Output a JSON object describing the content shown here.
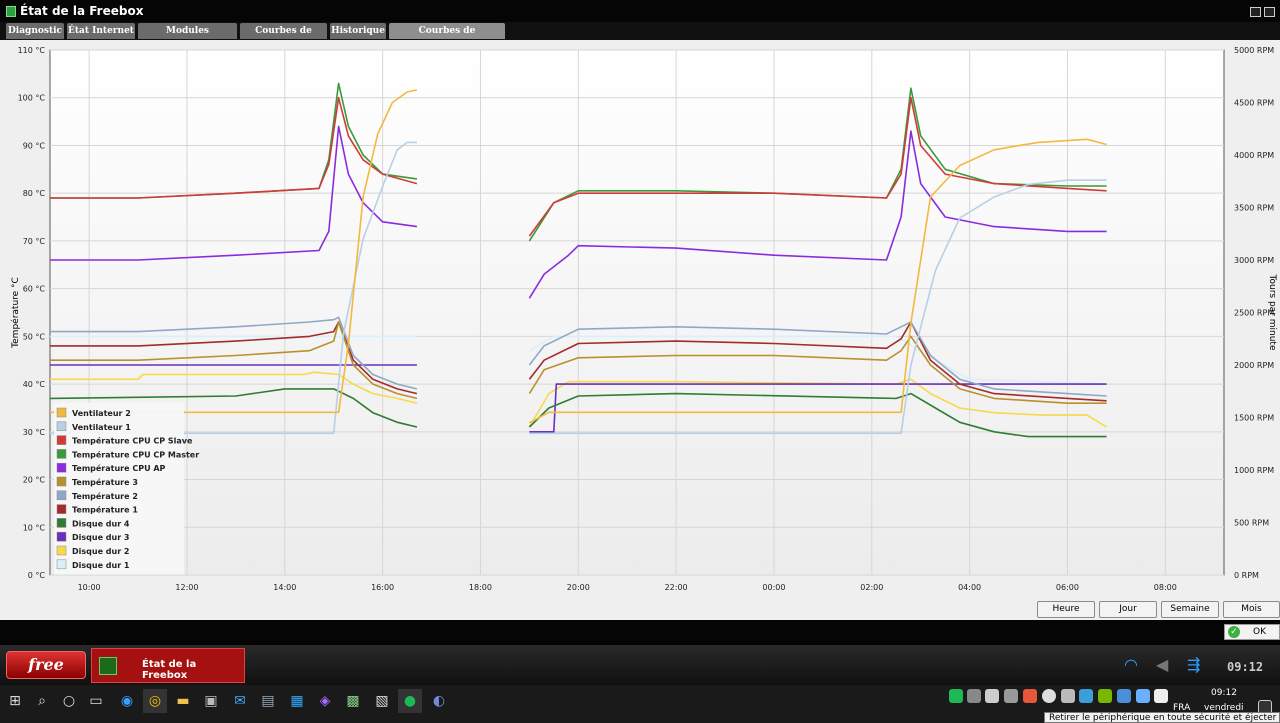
{
  "window": {
    "title": "État de la Freebox"
  },
  "tabs": [
    {
      "label": "Diagnostic"
    },
    {
      "label": "État Internet"
    },
    {
      "label": "Modules d'extension"
    },
    {
      "label": "Courbes de Débit"
    },
    {
      "label": "Historique"
    },
    {
      "label": "Courbes de température",
      "active": true
    }
  ],
  "range_buttons": [
    {
      "label": "Heure"
    },
    {
      "label": "Jour"
    },
    {
      "label": "Semaine"
    },
    {
      "label": "Mois"
    }
  ],
  "ok_button": {
    "label": "OK"
  },
  "freebox_bar": {
    "logo": "free",
    "task_label": "État de la Freebox",
    "clock": "09:12"
  },
  "taskbar": {
    "time": "09:12",
    "lang": "FRA",
    "day": "vendredi",
    "tooltip": "Retirer le périphérique en toute sécurité et éjecter le média"
  },
  "chart_data": {
    "type": "line",
    "ylabel": "Température °C",
    "y2label": "Tours par minute",
    "ylim": [
      0,
      110
    ],
    "y2lim": [
      0,
      5000
    ],
    "y_ticks": [
      "0 °C",
      "10 °C",
      "20 °C",
      "30 °C",
      "40 °C",
      "50 °C",
      "60 °C",
      "70 °C",
      "80 °C",
      "90 °C",
      "100 °C",
      "110 °C"
    ],
    "y2_ticks": [
      "0 RPM",
      "500 RPM",
      "1000 RPM",
      "1500 RPM",
      "2000 RPM",
      "2500 RPM",
      "3000 RPM",
      "3500 RPM",
      "4000 RPM",
      "4500 RPM",
      "5000 RPM"
    ],
    "x_ticks": [
      "10:00",
      "12:00",
      "14:00",
      "16:00",
      "18:00",
      "20:00",
      "22:00",
      "00:00",
      "02:00",
      "04:00",
      "06:00",
      "08:00"
    ],
    "x_tick_hours": [
      10,
      12,
      14,
      16,
      18,
      20,
      22,
      24,
      26,
      28,
      30,
      32
    ],
    "xlim_hours": [
      9.2,
      33.2
    ],
    "grid": true,
    "legend_position": "bottom-left",
    "series": [
      {
        "name": "Ventilateur 2",
        "color": "#f2b840",
        "axis": "y2",
        "segments": [
          [
            [
              9.2,
              1550
            ],
            [
              15.1,
              1550
            ],
            [
              15.3,
              2200
            ],
            [
              15.6,
              3600
            ],
            [
              15.9,
              4200
            ],
            [
              16.2,
              4500
            ],
            [
              16.5,
              4600
            ],
            [
              16.7,
              4620
            ]
          ],
          [
            [
              19.0,
              1450
            ],
            [
              19.4,
              1550
            ],
            [
              26.6,
              1550
            ],
            [
              26.8,
              2400
            ],
            [
              27.2,
              3600
            ],
            [
              27.8,
              3900
            ],
            [
              28.5,
              4050
            ],
            [
              29.4,
              4120
            ],
            [
              30.4,
              4150
            ],
            [
              30.8,
              4100
            ]
          ]
        ]
      },
      {
        "name": "Ventilateur 1",
        "color": "#b7d0e6",
        "axis": "y2",
        "segments": [
          [
            [
              9.2,
              1350
            ],
            [
              15.0,
              1350
            ],
            [
              15.2,
              2300
            ],
            [
              15.6,
              3200
            ],
            [
              16.0,
              3700
            ],
            [
              16.3,
              4050
            ],
            [
              16.5,
              4120
            ],
            [
              16.7,
              4120
            ]
          ],
          [
            [
              19.0,
              1350
            ],
            [
              26.6,
              1350
            ],
            [
              26.8,
              2000
            ],
            [
              27.3,
              2900
            ],
            [
              27.8,
              3400
            ],
            [
              28.5,
              3600
            ],
            [
              29.2,
              3720
            ],
            [
              30.0,
              3760
            ],
            [
              30.8,
              3760
            ]
          ]
        ]
      },
      {
        "name": "Température CPU CP Slave",
        "color": "#d23a3a",
        "axis": "y",
        "segments": [
          [
            [
              9.2,
              79
            ],
            [
              11,
              79
            ],
            [
              13,
              80
            ],
            [
              14.7,
              81
            ],
            [
              14.9,
              86
            ],
            [
              15.1,
              100
            ],
            [
              15.3,
              92
            ],
            [
              15.6,
              87
            ],
            [
              16.0,
              84
            ],
            [
              16.7,
              82
            ]
          ],
          [
            [
              19.0,
              71
            ],
            [
              19.5,
              78
            ],
            [
              20,
              80
            ],
            [
              22,
              80
            ],
            [
              24,
              80
            ],
            [
              26.3,
              79
            ],
            [
              26.6,
              84
            ],
            [
              26.8,
              100
            ],
            [
              27.0,
              90
            ],
            [
              27.5,
              84
            ],
            [
              28.5,
              82
            ],
            [
              30.0,
              81
            ],
            [
              30.8,
              80.5
            ]
          ]
        ]
      },
      {
        "name": "Température CPU CP Master",
        "color": "#3a9a3a",
        "axis": "y",
        "segments": [
          [
            [
              9.2,
              79
            ],
            [
              11,
              79
            ],
            [
              13,
              80
            ],
            [
              14.7,
              81
            ],
            [
              14.9,
              87
            ],
            [
              15.1,
              103
            ],
            [
              15.3,
              94
            ],
            [
              15.6,
              88
            ],
            [
              16.0,
              84
            ],
            [
              16.7,
              83
            ]
          ],
          [
            [
              19.0,
              70
            ],
            [
              19.5,
              78
            ],
            [
              20,
              80.5
            ],
            [
              22,
              80.5
            ],
            [
              24,
              80
            ],
            [
              26.3,
              79
            ],
            [
              26.6,
              85
            ],
            [
              26.8,
              102
            ],
            [
              27.0,
              92
            ],
            [
              27.5,
              85
            ],
            [
              28.5,
              82
            ],
            [
              30.0,
              81.5
            ],
            [
              30.8,
              81.5
            ]
          ]
        ]
      },
      {
        "name": "Température CPU AP",
        "color": "#8a2be2",
        "axis": "y",
        "segments": [
          [
            [
              9.2,
              66
            ],
            [
              11,
              66
            ],
            [
              13,
              67
            ],
            [
              14.7,
              68
            ],
            [
              14.9,
              72
            ],
            [
              15.1,
              94
            ],
            [
              15.3,
              84
            ],
            [
              15.6,
              78
            ],
            [
              16.0,
              74
            ],
            [
              16.7,
              73
            ]
          ],
          [
            [
              19.0,
              58
            ],
            [
              19.3,
              63
            ],
            [
              19.8,
              67
            ],
            [
              20,
              69
            ],
            [
              22,
              68.5
            ],
            [
              24,
              67
            ],
            [
              26.3,
              66
            ],
            [
              26.6,
              75
            ],
            [
              26.8,
              93
            ],
            [
              27.0,
              82
            ],
            [
              27.5,
              75
            ],
            [
              28.5,
              73
            ],
            [
              30.0,
              72
            ],
            [
              30.8,
              72
            ]
          ]
        ]
      },
      {
        "name": "Température 3",
        "color": "#b8902e",
        "axis": "y",
        "segments": [
          [
            [
              9.2,
              45
            ],
            [
              11,
              45
            ],
            [
              13,
              46
            ],
            [
              14.5,
              47
            ],
            [
              15.0,
              49
            ],
            [
              15.1,
              53
            ],
            [
              15.4,
              44
            ],
            [
              15.8,
              40
            ],
            [
              16.3,
              38
            ],
            [
              16.7,
              37
            ]
          ],
          [
            [
              19.0,
              38
            ],
            [
              19.3,
              43
            ],
            [
              20,
              45.5
            ],
            [
              22,
              46
            ],
            [
              24,
              46
            ],
            [
              26.3,
              45
            ],
            [
              26.6,
              47
            ],
            [
              26.8,
              50
            ],
            [
              27.2,
              44
            ],
            [
              27.8,
              39
            ],
            [
              28.5,
              37
            ],
            [
              30.0,
              36
            ],
            [
              30.8,
              36
            ]
          ]
        ]
      },
      {
        "name": "Température 2",
        "color": "#8fa8c8",
        "axis": "y",
        "segments": [
          [
            [
              9.2,
              51
            ],
            [
              11,
              51
            ],
            [
              13,
              52
            ],
            [
              14.5,
              53
            ],
            [
              15.0,
              53.5
            ],
            [
              15.1,
              54
            ],
            [
              15.4,
              46
            ],
            [
              15.8,
              42
            ],
            [
              16.3,
              40
            ],
            [
              16.7,
              39
            ]
          ],
          [
            [
              19.0,
              44
            ],
            [
              19.3,
              48
            ],
            [
              20,
              51.5
            ],
            [
              22,
              52
            ],
            [
              24,
              51.5
            ],
            [
              26.3,
              50.5
            ],
            [
              26.6,
              52
            ],
            [
              26.8,
              53
            ],
            [
              27.2,
              46
            ],
            [
              27.8,
              41
            ],
            [
              28.5,
              39
            ],
            [
              30.0,
              38
            ],
            [
              30.8,
              37.5
            ]
          ]
        ]
      },
      {
        "name": "Température 1",
        "color": "#a52a2a",
        "axis": "y",
        "segments": [
          [
            [
              9.2,
              48
            ],
            [
              11,
              48
            ],
            [
              13,
              49
            ],
            [
              14.5,
              50
            ],
            [
              15.0,
              51
            ],
            [
              15.1,
              53
            ],
            [
              15.4,
              45
            ],
            [
              15.8,
              41
            ],
            [
              16.3,
              39
            ],
            [
              16.7,
              38
            ]
          ],
          [
            [
              19.0,
              41
            ],
            [
              19.3,
              45
            ],
            [
              20,
              48.5
            ],
            [
              22,
              49
            ],
            [
              24,
              48.5
            ],
            [
              26.3,
              47.5
            ],
            [
              26.6,
              49.5
            ],
            [
              26.8,
              53
            ],
            [
              27.2,
              45
            ],
            [
              27.8,
              40
            ],
            [
              28.5,
              38
            ],
            [
              30.0,
              37
            ],
            [
              30.8,
              36.5
            ]
          ]
        ]
      },
      {
        "name": "Disque dur 4",
        "color": "#2e7d32",
        "axis": "y",
        "segments": [
          [
            [
              9.2,
              37
            ],
            [
              13,
              37.5
            ],
            [
              14,
              39
            ],
            [
              15,
              39
            ],
            [
              15.4,
              37
            ],
            [
              15.8,
              34
            ],
            [
              16.3,
              32
            ],
            [
              16.7,
              31
            ]
          ],
          [
            [
              19.0,
              31
            ],
            [
              19.4,
              35
            ],
            [
              20,
              37.5
            ],
            [
              22,
              38
            ],
            [
              26.5,
              37
            ],
            [
              26.8,
              38
            ],
            [
              27.3,
              35
            ],
            [
              27.8,
              32
            ],
            [
              28.5,
              30
            ],
            [
              29.2,
              29
            ],
            [
              30.8,
              29
            ]
          ]
        ]
      },
      {
        "name": "Disque dur 3",
        "color": "#6a2fc0",
        "axis": "y",
        "segments": [
          [
            [
              9.2,
              44
            ],
            [
              16.7,
              44
            ]
          ],
          [
            [
              19.0,
              30
            ],
            [
              19.5,
              30
            ],
            [
              19.55,
              40
            ],
            [
              30.8,
              40
            ]
          ]
        ]
      },
      {
        "name": "Disque dur 2",
        "color": "#f7d94a",
        "axis": "y",
        "segments": [
          [
            [
              9.2,
              41
            ],
            [
              11,
              41
            ],
            [
              11.1,
              42
            ],
            [
              14.4,
              42
            ],
            [
              14.6,
              42.5
            ],
            [
              15.1,
              42
            ],
            [
              15.4,
              40
            ],
            [
              15.8,
              38
            ],
            [
              16.3,
              37
            ],
            [
              16.7,
              36
            ]
          ],
          [
            [
              19.0,
              31
            ],
            [
              19.4,
              38
            ],
            [
              19.8,
              40.5
            ],
            [
              22,
              40.5
            ],
            [
              26.5,
              40
            ],
            [
              26.8,
              41
            ],
            [
              27.2,
              38
            ],
            [
              27.8,
              35
            ],
            [
              28.5,
              34
            ],
            [
              29.5,
              33.5
            ],
            [
              30.4,
              33.5
            ],
            [
              30.8,
              31
            ]
          ]
        ]
      },
      {
        "name": "Disque dur 1",
        "color": "#d8f0fb",
        "axis": "y",
        "segments": [
          [
            [
              9.2,
              50
            ],
            [
              16.7,
              50
            ]
          ],
          [
            [
              19.0,
              47
            ],
            [
              19.5,
              50
            ],
            [
              26.5,
              50
            ],
            [
              27.3,
              45
            ],
            [
              28.0,
              41
            ],
            [
              30.8,
              40
            ]
          ]
        ]
      }
    ]
  }
}
